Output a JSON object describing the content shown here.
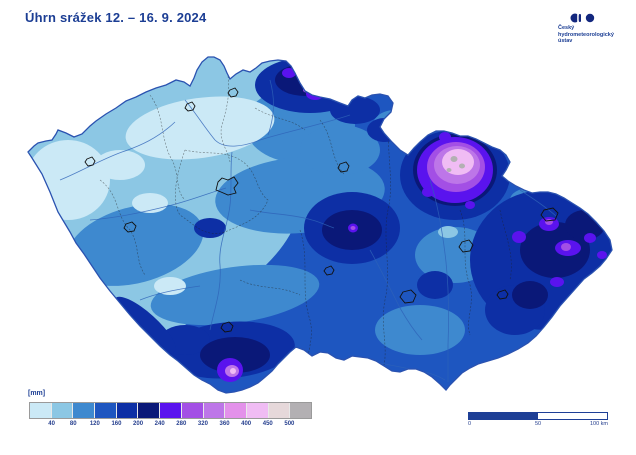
{
  "header": {
    "title": "Úhrn srážek 12. – 16. 9. 2024"
  },
  "logo": {
    "line1": "Český",
    "line2": "hydrometeorologický",
    "line3": "ústav",
    "color": "#13277e"
  },
  "legend": {
    "unit_label": "[mm]",
    "tick_values": [
      40,
      80,
      120,
      160,
      200,
      240,
      280,
      320,
      360,
      400,
      450,
      500
    ],
    "palette": [
      "#cbe9f6",
      "#8cc7e4",
      "#3e89cf",
      "#1e56c0",
      "#0d2fa5",
      "#0a1878",
      "#5a13ee",
      "#a34fe5",
      "#bd76e8",
      "#e391ea",
      "#f0bcf4",
      "#e6d8da",
      "#b3b0b3"
    ]
  },
  "scalebar": {
    "start_label": "0",
    "mid_label": "50",
    "end_label": "100 km"
  },
  "colors": {
    "title_text": "#1c3e94",
    "country_border": "#2a52b0",
    "scalebar_fill": "#1e3f96"
  }
}
